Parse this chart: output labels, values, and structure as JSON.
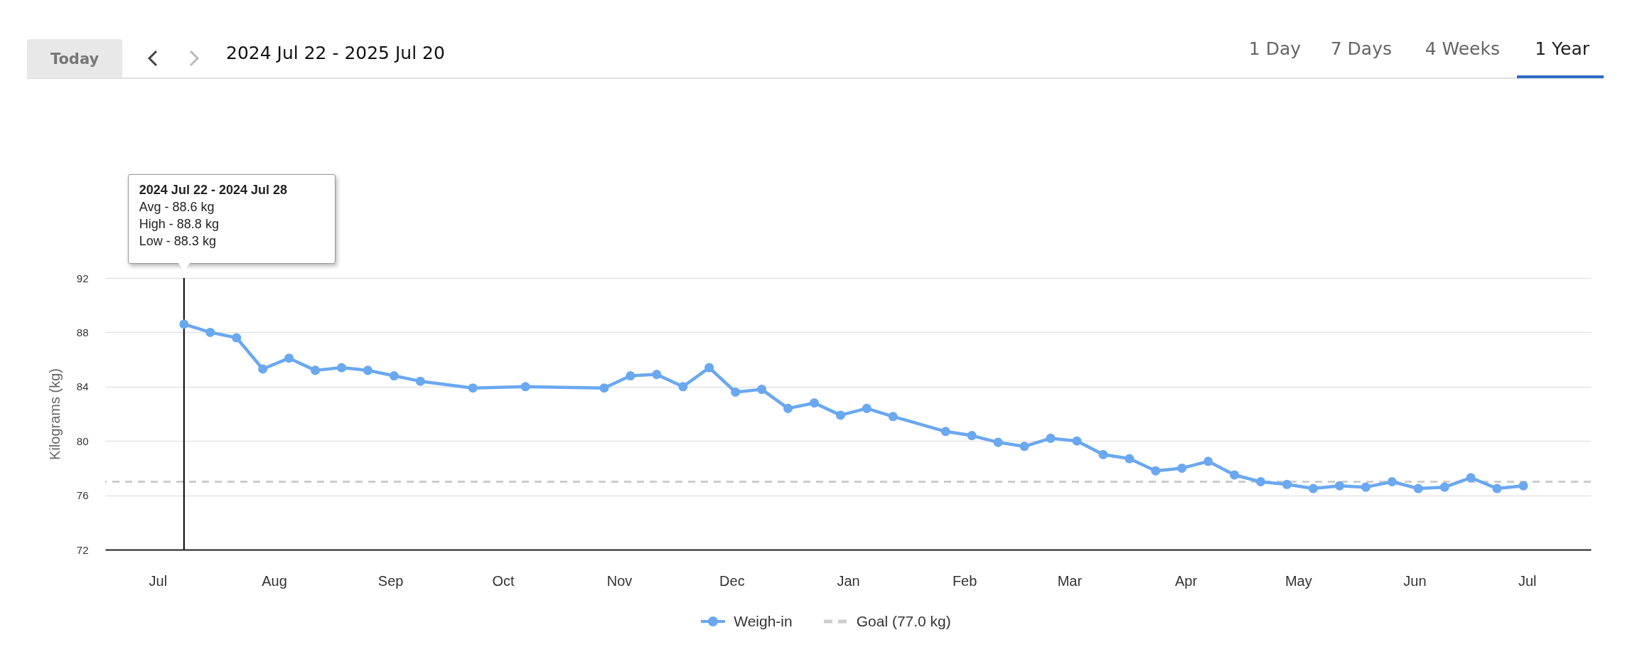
{
  "chart_data": {
    "type": "line",
    "ylabel": "Kilograms (kg)",
    "x": [
      "2024-07-22",
      "2024-07-29",
      "2024-08-05",
      "2024-08-12",
      "2024-08-19",
      "2024-08-26",
      "2024-09-02",
      "2024-09-09",
      "2024-09-16",
      "2024-09-23",
      "2024-10-07",
      "2024-10-21",
      "2024-11-11",
      "2024-11-18",
      "2024-11-25",
      "2024-12-02",
      "2024-12-09",
      "2024-12-16",
      "2024-12-23",
      "2024-12-30",
      "2025-01-06",
      "2025-01-13",
      "2025-01-20",
      "2025-01-27",
      "2025-02-10",
      "2025-02-17",
      "2025-02-24",
      "2025-03-03",
      "2025-03-10",
      "2025-03-17",
      "2025-03-24",
      "2025-03-31",
      "2025-04-07",
      "2025-04-14",
      "2025-04-21",
      "2025-04-28",
      "2025-05-05",
      "2025-05-12",
      "2025-05-19",
      "2025-05-26",
      "2025-06-02",
      "2025-06-09",
      "2025-06-16",
      "2025-06-23",
      "2025-06-30",
      "2025-07-07",
      "2025-07-14"
    ],
    "series": [
      {
        "name": "Weigh-in",
        "color": "#6aa8f0",
        "values": [
          88.6,
          88.0,
          87.6,
          85.3,
          86.1,
          85.2,
          85.4,
          85.2,
          84.8,
          84.4,
          83.9,
          84.0,
          83.9,
          84.8,
          84.9,
          84.0,
          85.4,
          83.6,
          83.8,
          82.4,
          82.8,
          81.9,
          82.4,
          81.8,
          80.7,
          80.4,
          79.9,
          79.6,
          80.2,
          80.0,
          79.0,
          78.7,
          77.8,
          78.0,
          78.5,
          77.5,
          77.0,
          76.8,
          76.5,
          76.7,
          76.6,
          77.0,
          76.5,
          76.6,
          77.3,
          76.5,
          76.7
        ]
      }
    ],
    "xlim": [
      "2024-07-01",
      "2025-08-01"
    ],
    "xticks": [
      {
        "value": "2024-07-15",
        "label": "Jul"
      },
      {
        "value": "2024-08-15",
        "label": "Aug"
      },
      {
        "value": "2024-09-15",
        "label": "Sep"
      },
      {
        "value": "2024-10-15",
        "label": "Oct"
      },
      {
        "value": "2024-11-15",
        "label": "Nov"
      },
      {
        "value": "2024-12-15",
        "label": "Dec"
      },
      {
        "value": "2025-01-15",
        "label": "Jan"
      },
      {
        "value": "2025-02-15",
        "label": "Feb"
      },
      {
        "value": "2025-03-15",
        "label": "Mar"
      },
      {
        "value": "2025-04-15",
        "label": "Apr"
      },
      {
        "value": "2025-05-15",
        "label": "May"
      },
      {
        "value": "2025-06-15",
        "label": "Jun"
      },
      {
        "value": "2025-07-15",
        "label": "Jul"
      }
    ],
    "ylim": [
      72,
      92
    ],
    "yticks": [
      72,
      76,
      80,
      84,
      88,
      92
    ],
    "grid": "y",
    "marker": "circle",
    "line_style": "solid",
    "legend": "bottom",
    "ref_lines": [
      {
        "axis": "y",
        "value": 77.0,
        "label": "Goal (77.0 kg)",
        "color": "#cccccc",
        "line_style": "dashed"
      },
      {
        "axis": "x",
        "value": "2024-07-22",
        "color": "#000000",
        "line_style": "solid"
      }
    ],
    "annotations": [
      "Today",
      "2024 Jul 22 - 2025 Jul 20",
      "1 Day",
      "7 Days",
      "4 Weeks",
      "1 Year",
      {
        "text": "2024 Jul 22 - 2024 Jul 28\nAvg - 88.6 kg\nHigh - 88.8 kg\nLow - 88.3 kg",
        "x": "2024-07-22",
        "y": 92
      }
    ]
  }
}
